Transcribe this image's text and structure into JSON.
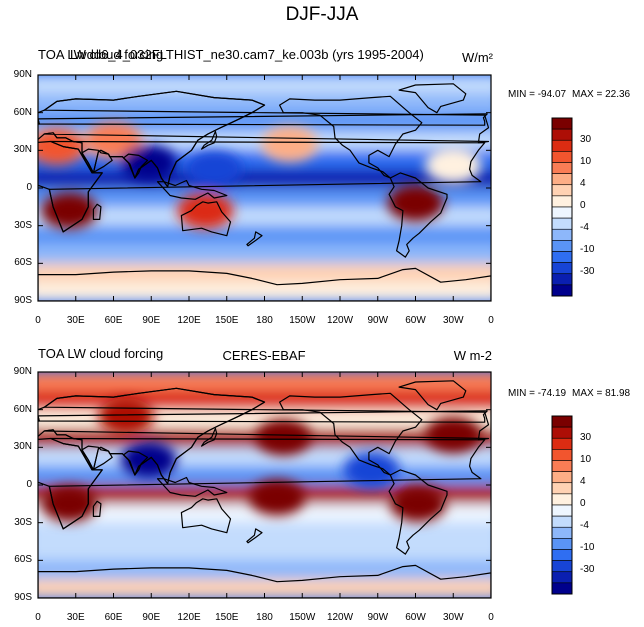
{
  "figure": {
    "title": "DJF-JJA"
  },
  "colors": {
    "levels": [
      "#00008c",
      "#0a1fb0",
      "#1744d6",
      "#2f6ef2",
      "#5a94f6",
      "#8db7fa",
      "#c3dcfd",
      "#eef6ff",
      "#fff1e0",
      "#ffd2b3",
      "#fdae86",
      "#fa7d55",
      "#f2552e",
      "#dc2c12",
      "#ad0e06",
      "#7a0000"
    ],
    "ocean_blue": "#2f6ef2",
    "coast": "#000000"
  },
  "chart_data": [
    {
      "type": "heatmap",
      "title_left": "TOA LW cloud forcing",
      "title_left_overlap": "Lwdd6_4_032FLTHIST_ne30.cam7_ke.003b (yrs 1995-2004)",
      "units": "W/m²",
      "min_label": "MIN = -94.07",
      "max_label": "MAX =  22.36",
      "min": -94.07,
      "max": 22.36,
      "xticks": [
        "0",
        "30E",
        "60E",
        "90E",
        "120E",
        "150E",
        "180",
        "150W",
        "120W",
        "90W",
        "60W",
        "30W",
        "0"
      ],
      "yticks": [
        "90N",
        "60N",
        "30N",
        "0",
        "30S",
        "60S",
        "90S"
      ],
      "xlim": [
        0,
        360
      ],
      "ylim": [
        -90,
        90
      ],
      "colorbar_levels": [
        -40,
        -35,
        -30,
        -25,
        -20,
        -15,
        -10,
        -6,
        -4,
        -2,
        0,
        2,
        4,
        6,
        10,
        20,
        30
      ],
      "colorbar_labels": [
        "30",
        "10",
        "4",
        "0",
        "-4",
        "-10",
        "-30"
      ],
      "regions": [
        {
          "name": "south-africa-positive",
          "lon": 25,
          "lat": -18,
          "value": 12
        },
        {
          "name": "north-australia-positive",
          "lon": 133,
          "lat": -18,
          "value": 6
        },
        {
          "name": "south-america-positive",
          "lon": 300,
          "lat": -12,
          "value": 14
        },
        {
          "name": "sahara-mediterranean",
          "lon": 15,
          "lat": 33,
          "value": 4
        },
        {
          "name": "west-asia",
          "lon": 60,
          "lat": 38,
          "value": 2
        },
        {
          "name": "indian-monsoon-negative",
          "lon": 88,
          "lat": 20,
          "value": -40
        },
        {
          "name": "west-pacific-negative",
          "lon": 140,
          "lat": 15,
          "value": -30
        },
        {
          "name": "north-pacific-light",
          "lon": 200,
          "lat": 35,
          "value": 0
        },
        {
          "name": "atlantic-light",
          "lon": 330,
          "lat": 18,
          "value": -4
        }
      ]
    },
    {
      "type": "heatmap",
      "title_left": "TOA LW cloud forcing",
      "title_center": "CERES-EBAF",
      "units": "W m-2",
      "min_label": "MIN = -74.19",
      "max_label": "MAX =  81.98",
      "min": -74.19,
      "max": 81.98,
      "xticks": [
        "0",
        "30E",
        "60E",
        "90E",
        "120E",
        "150E",
        "180",
        "150W",
        "120W",
        "90W",
        "60W",
        "30W",
        "0"
      ],
      "yticks": [
        "90N",
        "60N",
        "30N",
        "0",
        "30S",
        "60S",
        "90S"
      ],
      "xlim": [
        0,
        360
      ],
      "ylim": [
        -90,
        90
      ],
      "colorbar_levels": [
        -40,
        -35,
        -30,
        -25,
        -20,
        -15,
        -10,
        -6,
        -4,
        -2,
        0,
        2,
        4,
        6,
        10,
        20,
        30
      ],
      "colorbar_labels": [
        "30",
        "10",
        "4",
        "0",
        "-4",
        "-10",
        "-30"
      ],
      "regions": [
        {
          "name": "south-africa-positive",
          "lon": 25,
          "lat": -15,
          "value": 25
        },
        {
          "name": "south-america-positive",
          "lon": 302,
          "lat": -15,
          "value": 30
        },
        {
          "name": "south-pacific-band",
          "lon": 190,
          "lat": -10,
          "value": 20
        },
        {
          "name": "north-pacific-positive",
          "lon": 195,
          "lat": 38,
          "value": 15
        },
        {
          "name": "north-atlantic-positive",
          "lon": 330,
          "lat": 40,
          "value": 15
        },
        {
          "name": "eurasia-positive",
          "lon": 70,
          "lat": 55,
          "value": 8
        },
        {
          "name": "indian-monsoon-negative",
          "lon": 88,
          "lat": 20,
          "value": -40
        },
        {
          "name": "central-america-negative",
          "lon": 265,
          "lat": 12,
          "value": -30
        }
      ]
    }
  ]
}
